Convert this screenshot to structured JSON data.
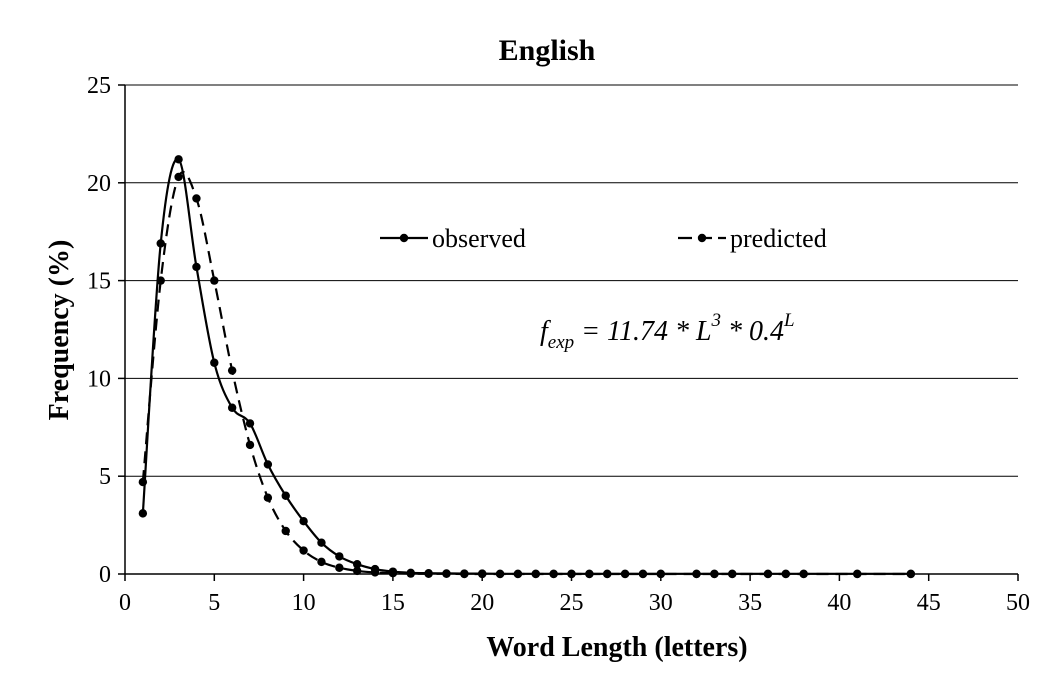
{
  "chart_data": {
    "type": "line",
    "title": "English",
    "xlabel": "Word Length (letters)",
    "ylabel": "Frequency (%)",
    "xlim": [
      0,
      50
    ],
    "ylim": [
      0,
      25
    ],
    "xticks": [
      0,
      5,
      10,
      15,
      20,
      25,
      30,
      35,
      40,
      45,
      50
    ],
    "yticks": [
      0,
      5,
      10,
      15,
      20,
      25
    ],
    "grid": "horizontal",
    "legend_placement": "top-right",
    "annotation": {
      "f": "f",
      "sub": "exp",
      "middle": " = 11.74 * L",
      "exp1": "3",
      "tail": " * 0.4",
      "exp2": "L"
    },
    "series": [
      {
        "name": "observed",
        "style": "solid",
        "color": "#000000",
        "x": [
          1,
          2,
          3,
          4,
          5,
          6,
          7,
          8,
          9,
          10,
          11,
          12,
          13,
          14,
          15,
          16,
          17,
          18,
          19,
          20,
          21,
          22,
          23,
          24,
          25,
          26,
          27,
          28,
          29,
          30,
          32,
          33,
          34,
          36,
          37,
          38,
          41,
          44
        ],
        "y": [
          3.1,
          16.9,
          21.2,
          15.7,
          10.8,
          8.5,
          7.7,
          5.6,
          4.0,
          2.7,
          1.6,
          0.9,
          0.5,
          0.25,
          0.12,
          0.06,
          0.04,
          0.03,
          0.02,
          0.02,
          0.01,
          0.01,
          0.01,
          0.01,
          0.01,
          0.01,
          0.01,
          0.01,
          0.01,
          0.01,
          0.01,
          0.01,
          0.01,
          0.01,
          0.01,
          0.01,
          0.01,
          0.01
        ]
      },
      {
        "name": "predicted",
        "style": "dashed",
        "color": "#000000",
        "x": [
          1,
          2,
          3,
          4,
          5,
          6,
          7,
          8,
          9,
          10,
          11,
          12,
          13,
          14,
          15,
          16,
          17,
          18,
          19,
          20,
          21,
          22,
          23,
          24,
          25,
          26,
          27,
          28,
          29,
          30,
          32,
          33,
          34,
          36,
          37,
          38,
          41,
          44
        ],
        "y": [
          4.7,
          15.0,
          20.3,
          19.2,
          15.0,
          10.4,
          6.6,
          3.9,
          2.2,
          1.2,
          0.62,
          0.32,
          0.16,
          0.08,
          0.04,
          0.02,
          0.01,
          0.01,
          0.0,
          0.0,
          0.0,
          0.0,
          0.0,
          0.0,
          0.0,
          0.0,
          0.0,
          0.0,
          0.0,
          0.0,
          0.0,
          0.0,
          0.0,
          0.0,
          0.0,
          0.0,
          0.0,
          0.0
        ]
      }
    ]
  }
}
